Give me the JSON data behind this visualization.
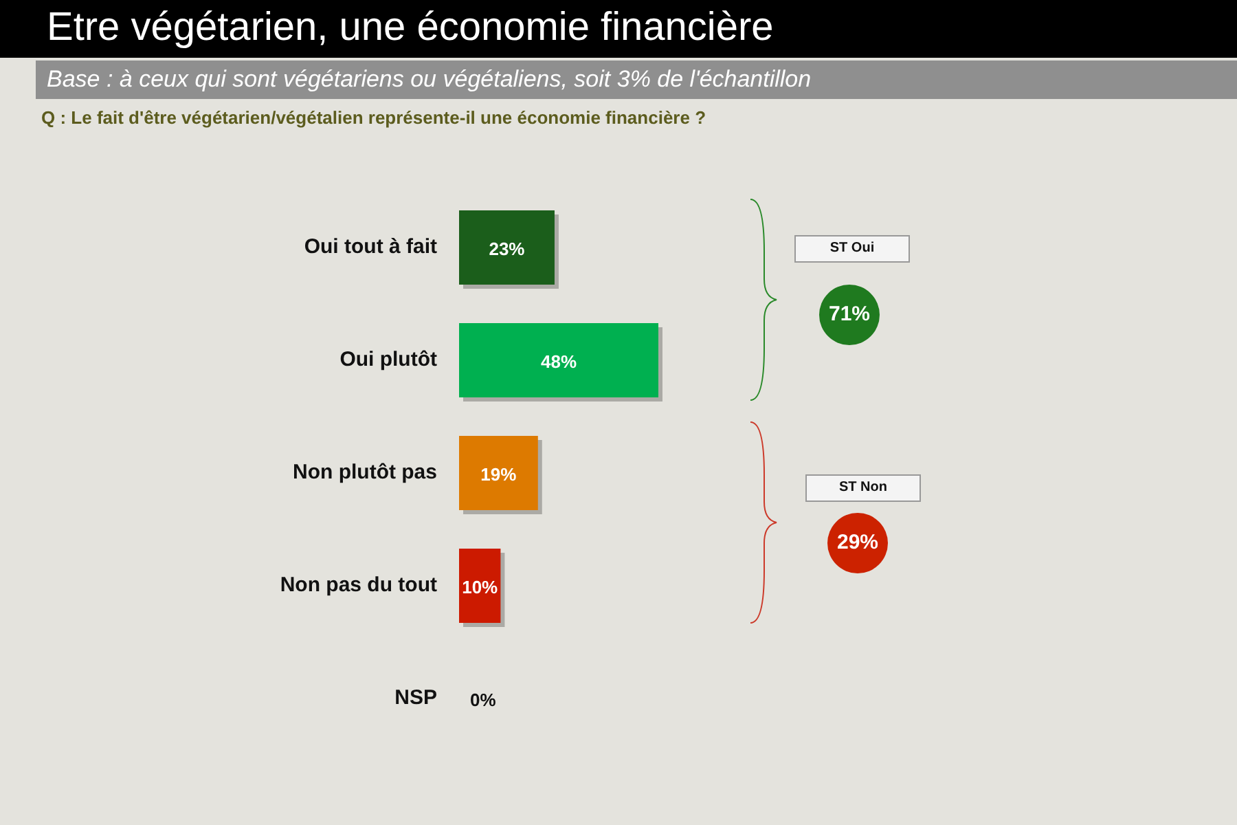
{
  "chart_data": {
    "type": "bar",
    "orientation": "horizontal",
    "title": "Etre végétarien, une économie financière",
    "subtitle": "Base : à ceux qui sont végétariens ou végétaliens, soit 3% de l'échantillon",
    "categories": [
      "Oui tout à fait",
      "Oui plutôt",
      "Non plutôt pas",
      "Non pas du tout",
      "NSP"
    ],
    "values": [
      23,
      48,
      19,
      10,
      0
    ],
    "colors": [
      "#1b5e1b",
      "#00b050",
      "#dd7a00",
      "#cc1a00",
      "#888888"
    ],
    "value_labels": [
      "23%",
      "48%",
      "19%",
      "10%",
      "0%"
    ],
    "tick_labels": "y",
    "legend": false,
    "annotations": [
      "Q : Le fait d'être végétarien/végétalien représente-il une économie financière ?",
      "ST Oui",
      "71%",
      "ST Non",
      "29%"
    ]
  }
}
